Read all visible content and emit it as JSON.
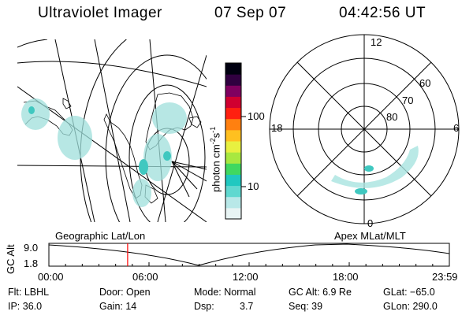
{
  "header": {
    "instrument": "Ultraviolet Imager",
    "date": "07 Sep 07",
    "time": "04:42:56 UT"
  },
  "colorbar": {
    "label": "photon cm",
    "exp1": "-2",
    "mid": "s",
    "exp2": "-1",
    "ticks": [
      "100",
      "10"
    ],
    "colors": [
      "#e8f4f4",
      "#b8e8e8",
      "#60d8d0",
      "#20c8c0",
      "#40d860",
      "#a8e840",
      "#e8f040",
      "#ffc020",
      "#ff8010",
      "#ff2010",
      "#d00030",
      "#800060",
      "#300040",
      "#000010"
    ]
  },
  "polar_plot": {
    "mlt_labels": {
      "top": "12",
      "left": "18",
      "right": "6",
      "bottom": "0"
    },
    "lat_labels": [
      "60",
      "70",
      "80"
    ]
  },
  "timeline": {
    "left_label": "Geographic Lat/Lon",
    "right_label": "Apex MLat/MLT",
    "yaxis_title": "GC Alt",
    "ymax": "9.0",
    "ymin": "1.8",
    "xticks": [
      "00:00",
      "06:00",
      "12:00",
      "18:00",
      "23:59"
    ],
    "current_hour": 4.72,
    "marker_color": "#ff0000"
  },
  "info": {
    "flt": "Flt: LBHL",
    "ip": "IP: 36.0",
    "door": "Door: Open",
    "gain": "Gain: 14",
    "mode": "Mode: Normal",
    "dsp_label": "Dsp:",
    "dsp_value": "3.7",
    "gcalt": "GC Alt: 6.9 Re",
    "seq": "Seq: 39",
    "glat": "GLat: −65.0",
    "glon": "GLon: 290.0"
  }
}
